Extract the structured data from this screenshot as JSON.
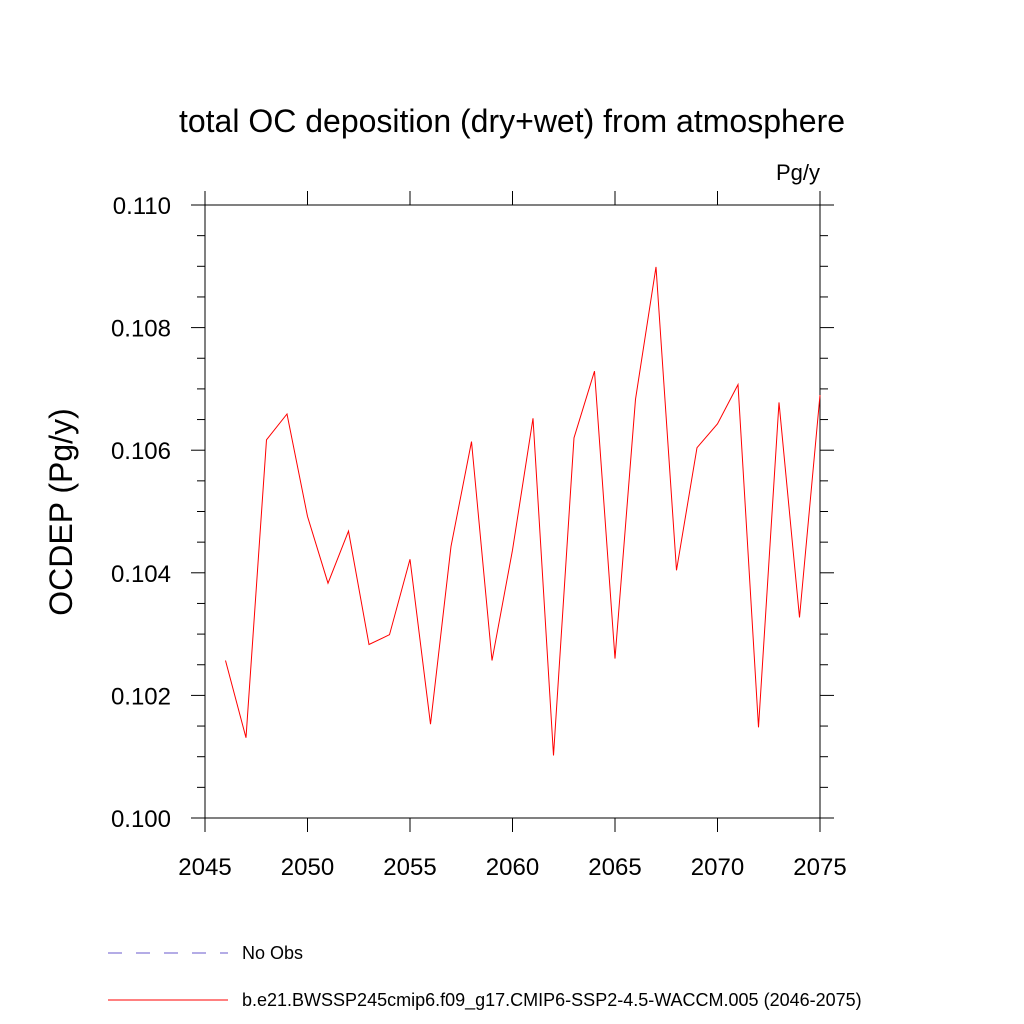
{
  "chart_data": {
    "type": "line",
    "title": "total OC deposition (dry+wet) from atmosphere",
    "units": "Pg/y",
    "ylabel": "OCDEP  (Pg/y)",
    "xlabel": "",
    "xlim": [
      2045,
      2075
    ],
    "ylim": [
      0.1,
      0.11
    ],
    "x_ticks": [
      2045,
      2050,
      2055,
      2060,
      2065,
      2070,
      2075
    ],
    "x_tick_labels": [
      "2045",
      "2050",
      "2055",
      "2060",
      "2065",
      "2070",
      "2075"
    ],
    "y_ticks": [
      0.1,
      0.102,
      0.104,
      0.106,
      0.108,
      0.11
    ],
    "y_tick_labels": [
      "0.100",
      "0.102",
      "0.104",
      "0.106",
      "0.108",
      "0.110"
    ],
    "grid": false,
    "legend_position": "bottom",
    "series": [
      {
        "name": "b.e21.BWSSP245cmip6.f09_g17.CMIP6-SSP2-4.5-WACCM.005 (2046-2075)",
        "color": "#ff0000",
        "x": [
          2046,
          2047,
          2048,
          2049,
          2050,
          2051,
          2052,
          2053,
          2054,
          2055,
          2056,
          2057,
          2058,
          2059,
          2060,
          2061,
          2062,
          2063,
          2064,
          2065,
          2066,
          2067,
          2068,
          2069,
          2070,
          2071,
          2072,
          2073,
          2074,
          2075
        ],
        "values": [
          0.10257,
          0.10131,
          0.10617,
          0.10659,
          0.10492,
          0.10383,
          0.10468,
          0.10283,
          0.10299,
          0.10422,
          0.10153,
          0.10443,
          0.10614,
          0.10257,
          0.10437,
          0.10652,
          0.10102,
          0.1062,
          0.10729,
          0.1026,
          0.10683,
          0.10899,
          0.10404,
          0.10604,
          0.10643,
          0.10707,
          0.10148,
          0.10678,
          0.10327,
          0.1069
        ]
      }
    ],
    "legend": [
      {
        "label": "No Obs",
        "color": "#6a5acd",
        "style": "dashed"
      },
      {
        "label": "b.e21.BWSSP245cmip6.f09_g17.CMIP6-SSP2-4.5-WACCM.005 (2046-2075)",
        "color": "#ff0000",
        "style": "solid"
      }
    ]
  }
}
